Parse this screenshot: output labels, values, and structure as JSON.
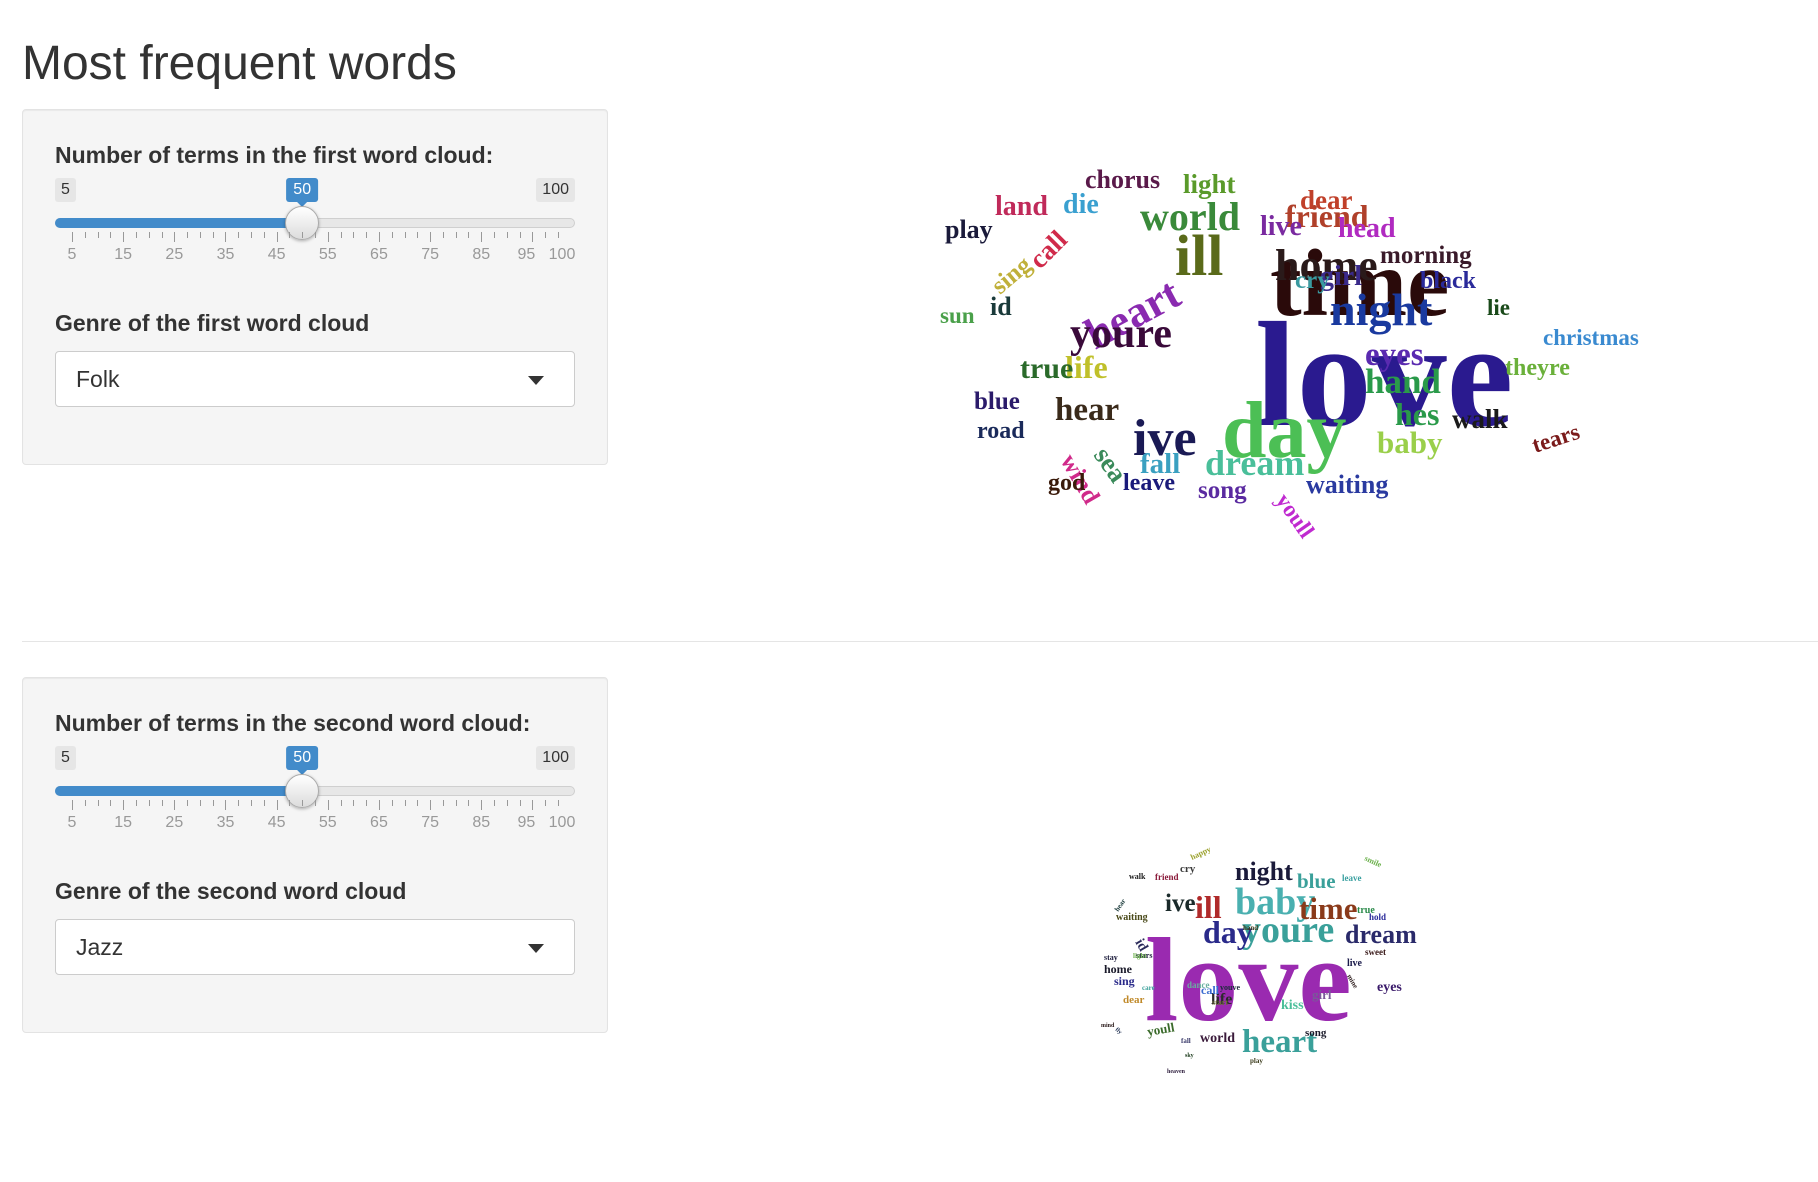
{
  "page": {
    "title": "Most frequent words"
  },
  "controls": [
    {
      "slider_label": "Number of terms in the first word cloud:",
      "min": 5,
      "max": 100,
      "value": 50,
      "min_label": "5",
      "max_label": "100",
      "value_label": "50",
      "tick_labels": [
        "5",
        "15",
        "25",
        "35",
        "45",
        "55",
        "65",
        "75",
        "85",
        "95",
        "100"
      ],
      "genre_label": "Genre of the first word cloud",
      "genre_value": "Folk"
    },
    {
      "slider_label": "Number of terms in the second word cloud:",
      "min": 5,
      "max": 100,
      "value": 50,
      "min_label": "5",
      "max_label": "100",
      "value_label": "50",
      "tick_labels": [
        "5",
        "15",
        "25",
        "35",
        "45",
        "55",
        "65",
        "75",
        "85",
        "95",
        "100"
      ],
      "genre_label": "Genre of the second word cloud",
      "genre_value": "Jazz"
    }
  ],
  "colors": {
    "accent": "#428bca"
  },
  "clouds": [
    {
      "words": [
        {
          "w": "love",
          "c": "#2a1a8f"
        },
        {
          "w": "time",
          "c": "#2a0a0a"
        },
        {
          "w": "day",
          "c": "#4cbf55"
        },
        {
          "w": "ive",
          "c": "#1a1a55"
        },
        {
          "w": "night",
          "c": "#1a3a9f"
        },
        {
          "w": "ill",
          "c": "#5a6a1a"
        },
        {
          "w": "home",
          "c": "#2a1a1a"
        },
        {
          "w": "heart",
          "c": "#8a2ab0"
        },
        {
          "w": "youre",
          "c": "#3a0a3a"
        },
        {
          "w": "world",
          "c": "#3a8a3a"
        },
        {
          "w": "friend",
          "c": "#b0402a"
        },
        {
          "w": "eyes",
          "c": "#5a2ab0"
        },
        {
          "w": "hand",
          "c": "#2a9a4a"
        },
        {
          "w": "hear",
          "c": "#3a2a1a"
        },
        {
          "w": "life",
          "c": "#c0c02a"
        },
        {
          "w": "dream",
          "c": "#4abf9a"
        },
        {
          "w": "hes",
          "c": "#2a9a4a"
        },
        {
          "w": "baby",
          "c": "#9acf4a"
        },
        {
          "w": "live",
          "c": "#7a2aa0"
        },
        {
          "w": "head",
          "c": "#b02ac0"
        },
        {
          "w": "true",
          "c": "#2a6a2a"
        },
        {
          "w": "fall",
          "c": "#3aa0c0"
        },
        {
          "w": "walk",
          "c": "#1a1a1a"
        },
        {
          "w": "girl",
          "c": "#3a2a8a"
        },
        {
          "w": "chorus",
          "c": "#5a1a4a"
        },
        {
          "w": "light",
          "c": "#5a9a2a"
        },
        {
          "w": "dear",
          "c": "#c0402a"
        },
        {
          "w": "land",
          "c": "#c02a5a"
        },
        {
          "w": "die",
          "c": "#3aa0d0"
        },
        {
          "w": "play",
          "c": "#1a1a3a"
        },
        {
          "w": "call",
          "c": "#d02a4a"
        },
        {
          "w": "sing",
          "c": "#c0b03a"
        },
        {
          "w": "id",
          "c": "#1a3a3a"
        },
        {
          "w": "sun",
          "c": "#4aa04a"
        },
        {
          "w": "cry",
          "c": "#3a9aa0"
        },
        {
          "w": "morning",
          "c": "#3a1a2a"
        },
        {
          "w": "black",
          "c": "#2a2a9a"
        },
        {
          "w": "lie",
          "c": "#1a4a1a"
        },
        {
          "w": "christmas",
          "c": "#3a8ad0"
        },
        {
          "w": "theyre",
          "c": "#6ab03a"
        },
        {
          "w": "blue",
          "c": "#2a1a6a"
        },
        {
          "w": "road",
          "c": "#1a2a5a"
        },
        {
          "w": "wind",
          "c": "#d02a8a"
        },
        {
          "w": "sea",
          "c": "#3a8a5a"
        },
        {
          "w": "tears",
          "c": "#7a1a1a"
        },
        {
          "w": "god",
          "c": "#3a1a0a"
        },
        {
          "w": "leave",
          "c": "#1a1a7a"
        },
        {
          "w": "song",
          "c": "#5a2aa0"
        },
        {
          "w": "youll",
          "c": "#c02ad0"
        },
        {
          "w": "waiting",
          "c": "#2a3aa0"
        }
      ]
    },
    {
      "words": [
        {
          "w": "love",
          "c": "#9a2ab0"
        },
        {
          "w": "youre",
          "c": "#3aa09a"
        },
        {
          "w": "baby",
          "c": "#4ab0b0"
        },
        {
          "w": "day",
          "c": "#2a2a8a"
        },
        {
          "w": "heart",
          "c": "#3aa09a"
        },
        {
          "w": "time",
          "c": "#8a3a1a"
        },
        {
          "w": "dream",
          "c": "#2a2a6a"
        },
        {
          "w": "night",
          "c": "#1a1a3a"
        },
        {
          "w": "ill",
          "c": "#b02a2a"
        },
        {
          "w": "ive",
          "c": "#1a2a2a"
        },
        {
          "w": "blue",
          "c": "#3aa09a"
        },
        {
          "w": "eyes",
          "c": "#3a1a6a"
        },
        {
          "w": "life",
          "c": "#2a2a2a"
        },
        {
          "w": "kiss",
          "c": "#4abf9a"
        },
        {
          "w": "world",
          "c": "#3a1a3a"
        },
        {
          "w": "call",
          "c": "#3a6ad0"
        },
        {
          "w": "girl",
          "c": "#7a5a9a"
        },
        {
          "w": "song",
          "c": "#1a1a2a"
        },
        {
          "w": "youll",
          "c": "#3a6a2a"
        },
        {
          "w": "id",
          "c": "#2a2a5a"
        },
        {
          "w": "home",
          "c": "#1a1a2a"
        },
        {
          "w": "sing",
          "c": "#2a2a8a"
        },
        {
          "w": "dear",
          "c": "#c08a2a"
        },
        {
          "w": "waiting",
          "c": "#4a4a1a"
        },
        {
          "w": "cry",
          "c": "#3a3a3a"
        },
        {
          "w": "happy",
          "c": "#9aa02a"
        },
        {
          "w": "true",
          "c": "#2a8a4a"
        },
        {
          "w": "smile",
          "c": "#6ab04a"
        },
        {
          "w": "leave",
          "c": "#3aa0a0"
        },
        {
          "w": "hear",
          "c": "#1a3a3a"
        },
        {
          "w": "sweet",
          "c": "#3a1a1a"
        },
        {
          "w": "hold",
          "c": "#2a2a9a"
        },
        {
          "w": "live",
          "c": "#1a1a4a"
        },
        {
          "w": "mine",
          "c": "#2a1a1a"
        },
        {
          "w": "stay",
          "c": "#1a1a3a"
        },
        {
          "w": "friend",
          "c": "#8a1a3a"
        },
        {
          "w": "walk",
          "c": "#1a1a1a"
        },
        {
          "w": "hand",
          "c": "#3a3a1a"
        },
        {
          "w": "stars",
          "c": "#1a1a3a"
        },
        {
          "w": "light",
          "c": "#6ab04a"
        },
        {
          "w": "youve",
          "c": "#1a2a3a"
        },
        {
          "w": "dance",
          "c": "#6ab0a0"
        },
        {
          "w": "care",
          "c": "#3aa09a"
        },
        {
          "w": "start",
          "c": "#6a6a3a"
        },
        {
          "w": "fall",
          "c": "#3a3a6a"
        },
        {
          "w": "sky",
          "c": "#1a3a1a"
        },
        {
          "w": "mind",
          "c": "#2a1a1a"
        },
        {
          "w": "play",
          "c": "#3a3a1a"
        },
        {
          "w": "heaven",
          "c": "#2a1a3a"
        },
        {
          "w": "fly",
          "c": "#2a3a5a"
        }
      ]
    }
  ]
}
